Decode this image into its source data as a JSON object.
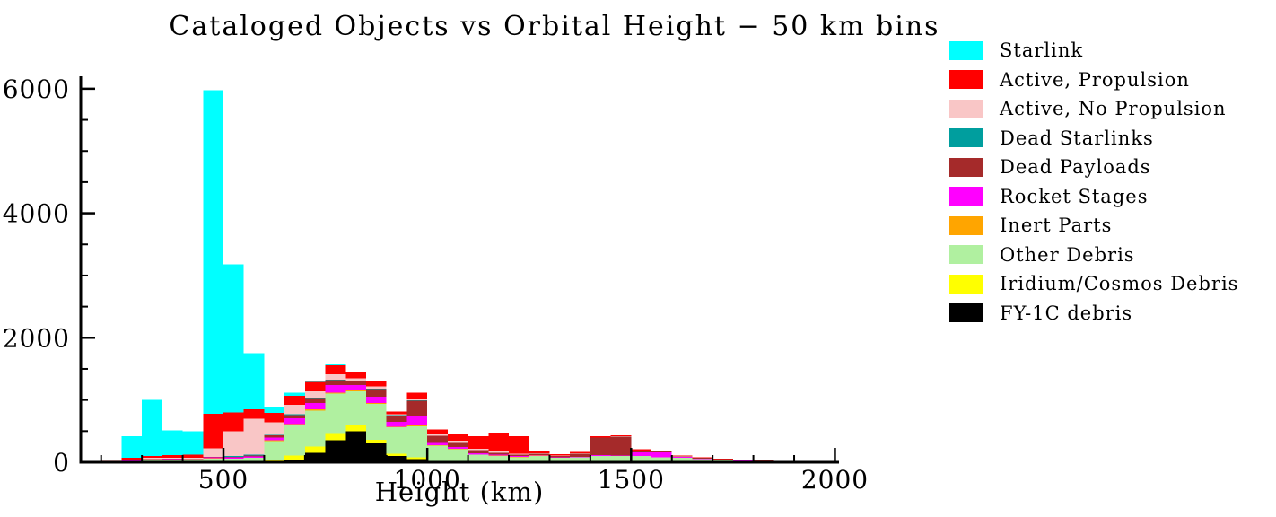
{
  "page": {
    "background": "#ffffff"
  },
  "chart_data": {
    "type": "bar",
    "stacked": true,
    "title": "Cataloged Objects vs Orbital Height − 50 km bins",
    "xlabel": "Height (km)",
    "ylabel": "",
    "bin_width_km": 50,
    "xlim": [
      150,
      2010
    ],
    "ylim": [
      0,
      6200
    ],
    "x_ticks": [
      500,
      1000,
      1500,
      2000
    ],
    "x_minor_step": 100,
    "y_ticks": [
      0,
      2000,
      4000,
      6000
    ],
    "y_minor_step": 500,
    "grid": false,
    "legend_position": "top-right",
    "axis_color": "#000000",
    "bins": [
      150,
      200,
      250,
      300,
      350,
      400,
      450,
      500,
      550,
      600,
      650,
      700,
      750,
      800,
      850,
      900,
      950,
      1000,
      1050,
      1100,
      1150,
      1200,
      1250,
      1300,
      1350,
      1400,
      1450,
      1500,
      1550,
      1600,
      1650,
      1700,
      1750,
      1800,
      1850,
      1900,
      1950
    ],
    "series": [
      {
        "name": "FY-1C debris",
        "color": "#000000",
        "values": [
          0,
          0,
          0,
          0,
          0,
          0,
          0,
          0,
          0,
          10,
          30,
          150,
          350,
          500,
          300,
          100,
          50,
          10,
          5,
          0,
          0,
          0,
          0,
          0,
          0,
          0,
          0,
          0,
          0,
          0,
          0,
          0,
          0,
          0,
          0,
          0,
          0
        ]
      },
      {
        "name": "Iridium/Cosmos Debris",
        "color": "#FFFF00",
        "values": [
          0,
          0,
          0,
          0,
          0,
          0,
          0,
          0,
          0,
          30,
          80,
          100,
          120,
          100,
          60,
          40,
          30,
          10,
          5,
          0,
          0,
          0,
          0,
          0,
          0,
          0,
          0,
          0,
          0,
          0,
          0,
          0,
          0,
          0,
          0,
          0,
          0
        ]
      },
      {
        "name": "Other Debris",
        "color": "#B0F0A0",
        "values": [
          15,
          20,
          25,
          40,
          40,
          35,
          60,
          55,
          70,
          300,
          480,
          580,
          630,
          540,
          580,
          420,
          500,
          250,
          200,
          120,
          100,
          80,
          100,
          70,
          80,
          100,
          100,
          100,
          80,
          70,
          50,
          35,
          25,
          18,
          15,
          12,
          9
        ]
      },
      {
        "name": "Inert Parts",
        "color": "#FFA500",
        "values": [
          0,
          0,
          0,
          0,
          0,
          0,
          5,
          5,
          5,
          10,
          20,
          20,
          20,
          20,
          15,
          10,
          10,
          5,
          5,
          5,
          5,
          5,
          5,
          0,
          0,
          0,
          0,
          0,
          0,
          0,
          0,
          0,
          0,
          0,
          0,
          0,
          0
        ]
      },
      {
        "name": "Rocket Stages",
        "color": "#FF00FF",
        "values": [
          0,
          5,
          5,
          5,
          10,
          10,
          15,
          20,
          20,
          50,
          100,
          100,
          120,
          80,
          100,
          80,
          150,
          50,
          30,
          20,
          20,
          15,
          10,
          10,
          10,
          15,
          10,
          60,
          80,
          15,
          10,
          8,
          5,
          5,
          3,
          3,
          2
        ]
      },
      {
        "name": "Dead Payloads",
        "color": "#A52A2A",
        "values": [
          0,
          0,
          0,
          5,
          5,
          5,
          10,
          10,
          15,
          30,
          50,
          80,
          80,
          60,
          120,
          100,
          250,
          100,
          80,
          50,
          30,
          20,
          20,
          20,
          50,
          280,
          300,
          20,
          15,
          10,
          10,
          5,
          5,
          5,
          3,
          3,
          2
        ]
      },
      {
        "name": "Dead Starlinks",
        "color": "#009E9E",
        "values": [
          0,
          0,
          0,
          0,
          0,
          0,
          0,
          10,
          10,
          10,
          10,
          10,
          10,
          10,
          5,
          5,
          5,
          0,
          0,
          0,
          0,
          0,
          0,
          0,
          0,
          0,
          0,
          0,
          0,
          0,
          0,
          0,
          0,
          0,
          0,
          0,
          0
        ]
      },
      {
        "name": "Active, No Propulsion",
        "color": "#F9C6C6",
        "values": [
          0,
          5,
          10,
          20,
          20,
          20,
          130,
          400,
          580,
          200,
          150,
          100,
          80,
          40,
          40,
          20,
          20,
          20,
          20,
          20,
          20,
          15,
          10,
          10,
          5,
          5,
          5,
          10,
          5,
          5,
          5,
          2,
          2,
          2,
          2,
          1,
          1
        ]
      },
      {
        "name": "Active, Propulsion",
        "color": "#FF0000",
        "values": [
          5,
          10,
          30,
          30,
          40,
          50,
          560,
          300,
          150,
          150,
          150,
          150,
          150,
          100,
          80,
          40,
          100,
          80,
          120,
          200,
          300,
          280,
          30,
          20,
          20,
          20,
          20,
          20,
          10,
          10,
          5,
          5,
          5,
          2,
          2,
          2,
          2
        ]
      },
      {
        "name": "Starlink",
        "color": "#00FFFF",
        "values": [
          0,
          0,
          350,
          900,
          400,
          380,
          5200,
          2380,
          900,
          100,
          50,
          20,
          10,
          0,
          0,
          0,
          0,
          0,
          0,
          0,
          0,
          0,
          0,
          0,
          0,
          0,
          0,
          0,
          0,
          0,
          0,
          0,
          0,
          0,
          0,
          0,
          0
        ]
      }
    ]
  }
}
